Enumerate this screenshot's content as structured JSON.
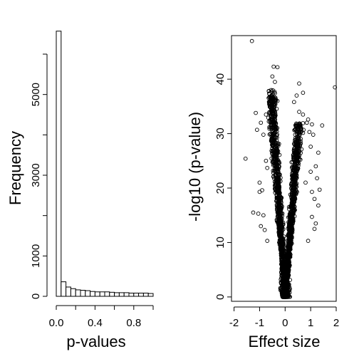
{
  "chart_data": [
    {
      "type": "bar",
      "title": "",
      "xlabel": "p-values",
      "ylabel": "Frequency",
      "xlim": [
        0,
        1
      ],
      "ylim": [
        0,
        6600
      ],
      "grid": false,
      "bin_width": 0.05,
      "bin_starts": [
        0,
        0.05,
        0.1,
        0.15,
        0.2,
        0.25,
        0.3,
        0.35,
        0.4,
        0.45,
        0.5,
        0.55,
        0.6,
        0.65,
        0.7,
        0.75,
        0.8,
        0.85,
        0.9,
        0.95
      ],
      "values": [
        6570,
        360,
        230,
        190,
        160,
        150,
        140,
        120,
        110,
        110,
        110,
        100,
        90,
        90,
        90,
        80,
        80,
        80,
        80,
        70
      ],
      "x_ticks": [
        0.0,
        0.2,
        0.4,
        0.6,
        0.8,
        1.0
      ],
      "x_tick_labels": [
        "0.0",
        "",
        "0.4",
        "",
        "0.8",
        ""
      ],
      "y_ticks": [
        0,
        1000,
        2000,
        3000,
        4000,
        5000,
        6000
      ],
      "y_tick_labels": [
        "0",
        "1000",
        "",
        "3000",
        "",
        "5000",
        ""
      ]
    },
    {
      "type": "scatter",
      "title": "",
      "xlabel": "Effect size",
      "ylabel": "-log10 (p-value)",
      "xlim": [
        -2.1,
        2.0
      ],
      "ylim": [
        -0.8,
        48
      ],
      "grid": false,
      "x_ticks": [
        -2,
        -1,
        0,
        1,
        2
      ],
      "x_tick_labels": [
        "-2",
        "-1",
        "0",
        "1",
        "2"
      ],
      "y_ticks": [
        0,
        10,
        20,
        30,
        40
      ],
      "y_tick_labels": [
        "0",
        "10",
        "20",
        "30",
        "40"
      ],
      "points": [
        [
          -1.3,
          47.0
        ],
        [
          -0.45,
          42.3
        ],
        [
          -0.3,
          42.2
        ],
        [
          -0.5,
          40.5
        ],
        [
          -0.4,
          39.5
        ],
        [
          -0.55,
          38.0
        ],
        [
          -0.4,
          37.4
        ],
        [
          -0.6,
          35.9
        ],
        [
          -0.45,
          35.3
        ],
        [
          -0.3,
          36.0
        ],
        [
          -1.15,
          33.8
        ],
        [
          -0.75,
          33.5
        ],
        [
          -0.95,
          32.0
        ],
        [
          -1.1,
          30.7
        ],
        [
          -0.85,
          29.8
        ],
        [
          -1.55,
          25.4
        ],
        [
          -0.75,
          25.0
        ],
        [
          -0.7,
          23.7
        ],
        [
          -1.0,
          21.0
        ],
        [
          -0.9,
          19.6
        ],
        [
          -1.0,
          19.3
        ],
        [
          -1.25,
          15.5
        ],
        [
          -1.05,
          15.3
        ],
        [
          -0.85,
          15.0
        ],
        [
          -0.95,
          13.0
        ],
        [
          -0.8,
          12.3
        ],
        [
          -0.7,
          10.3
        ],
        [
          0.55,
          39.2
        ],
        [
          0.45,
          37.0
        ],
        [
          0.7,
          37.5
        ],
        [
          0.35,
          35.8
        ],
        [
          0.55,
          34.0
        ],
        [
          0.7,
          33.5
        ],
        [
          0.9,
          32.6
        ],
        [
          0.85,
          32.0
        ],
        [
          1.05,
          31.7
        ],
        [
          1.45,
          31.5
        ],
        [
          0.55,
          30.5
        ],
        [
          0.95,
          30.3
        ],
        [
          1.1,
          29.8
        ],
        [
          1.95,
          38.5
        ],
        [
          1.0,
          27.6
        ],
        [
          1.3,
          26.5
        ],
        [
          1.2,
          24.0
        ],
        [
          1.0,
          23.0
        ],
        [
          1.25,
          21.8
        ],
        [
          0.8,
          21.0
        ],
        [
          1.35,
          19.7
        ],
        [
          1.05,
          19.3
        ],
        [
          1.15,
          18.0
        ],
        [
          1.3,
          16.8
        ],
        [
          1.05,
          14.7
        ],
        [
          1.2,
          13.5
        ],
        [
          1.15,
          12.5
        ],
        [
          0.9,
          10.3
        ]
      ],
      "arms": [
        {
          "side": -1,
          "x_at_top": -0.55,
          "y_top": 38,
          "jitter": 0.2,
          "count": 1300
        },
        {
          "side": 1,
          "x_at_top": 0.55,
          "y_top": 32,
          "jitter": 0.18,
          "count": 1200
        }
      ]
    }
  ]
}
